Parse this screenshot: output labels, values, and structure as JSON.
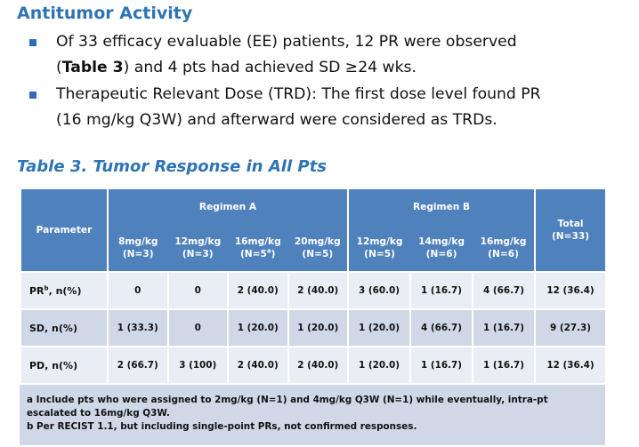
{
  "heading": "Antitumor Activity",
  "bullets": [
    {
      "line1_pre": "Of 33 efficacy evaluable (EE) patients, 12 PR were observed",
      "line2_open": "(",
      "line2_bold": "Table 3",
      "line2_rest": ") and 4 pts had achieved SD ≥24 wks."
    },
    {
      "line1": "Therapeutic Relevant Dose (TRD): The first dose level found PR",
      "line2": "(16 mg/kg Q3W) and afterward were considered as TRDs."
    }
  ],
  "table_caption": "Table 3. Tumor Response in All Pts",
  "table": {
    "param_header": "Parameter",
    "regimen_a_label": "Regimen A",
    "regimen_b_label": "Regimen B",
    "total_header_line1": "Total",
    "total_header_line2": "(N=33)",
    "dose_columns": [
      {
        "dose": "8mg/kg",
        "n": "(N=3)"
      },
      {
        "dose": "12mg/kg",
        "n": "(N=3)"
      },
      {
        "dose": "16mg/kg",
        "n_pre": "(N=5",
        "n_sup": "a",
        "n_post": ")"
      },
      {
        "dose": "20mg/kg",
        "n": "(N=5)"
      },
      {
        "dose": "12mg/kg",
        "n": "(N=5)"
      },
      {
        "dose": "14mg/kg",
        "n": "(N=6)"
      },
      {
        "dose": "16mg/kg",
        "n": "(N=6)"
      }
    ],
    "rows": [
      {
        "name_pre": "PR",
        "name_sup": "b",
        "name_post": ", n(%)",
        "values": [
          "0",
          "0",
          "2 (40.0)",
          "2 (40.0)",
          "3 (60.0)",
          "1 (16.7)",
          "4 (66.7)",
          "12 (36.4)"
        ]
      },
      {
        "name": "SD, n(%)",
        "values": [
          "1 (33.3)",
          "0",
          "1 (20.0)",
          "1 (20.0)",
          "1 (20.0)",
          "4 (66.7)",
          "1 (16.7)",
          "9 (27.3)"
        ]
      },
      {
        "name": "PD, n(%)",
        "values": [
          "2 (66.7)",
          "3 (100)",
          "2 (40.0)",
          "2 (40.0)",
          "1 (20.0)",
          "1 (16.7)",
          "1 (16.7)",
          "12 (36.4)"
        ]
      }
    ],
    "footnote_a": "a Include pts who were assigned to 2mg/kg (N=1) and 4mg/kg Q3W (N=1) while eventually, intra-pt escalated to 16mg/kg Q3W.",
    "footnote_b": "b Per RECIST 1.1, but including single-point PRs, not confirmed responses."
  },
  "colors": {
    "title_blue": "#2e74b5",
    "header_blue": "#4f81bd",
    "row_light": "#e9edf4",
    "row_dark": "#d0d8e8"
  }
}
